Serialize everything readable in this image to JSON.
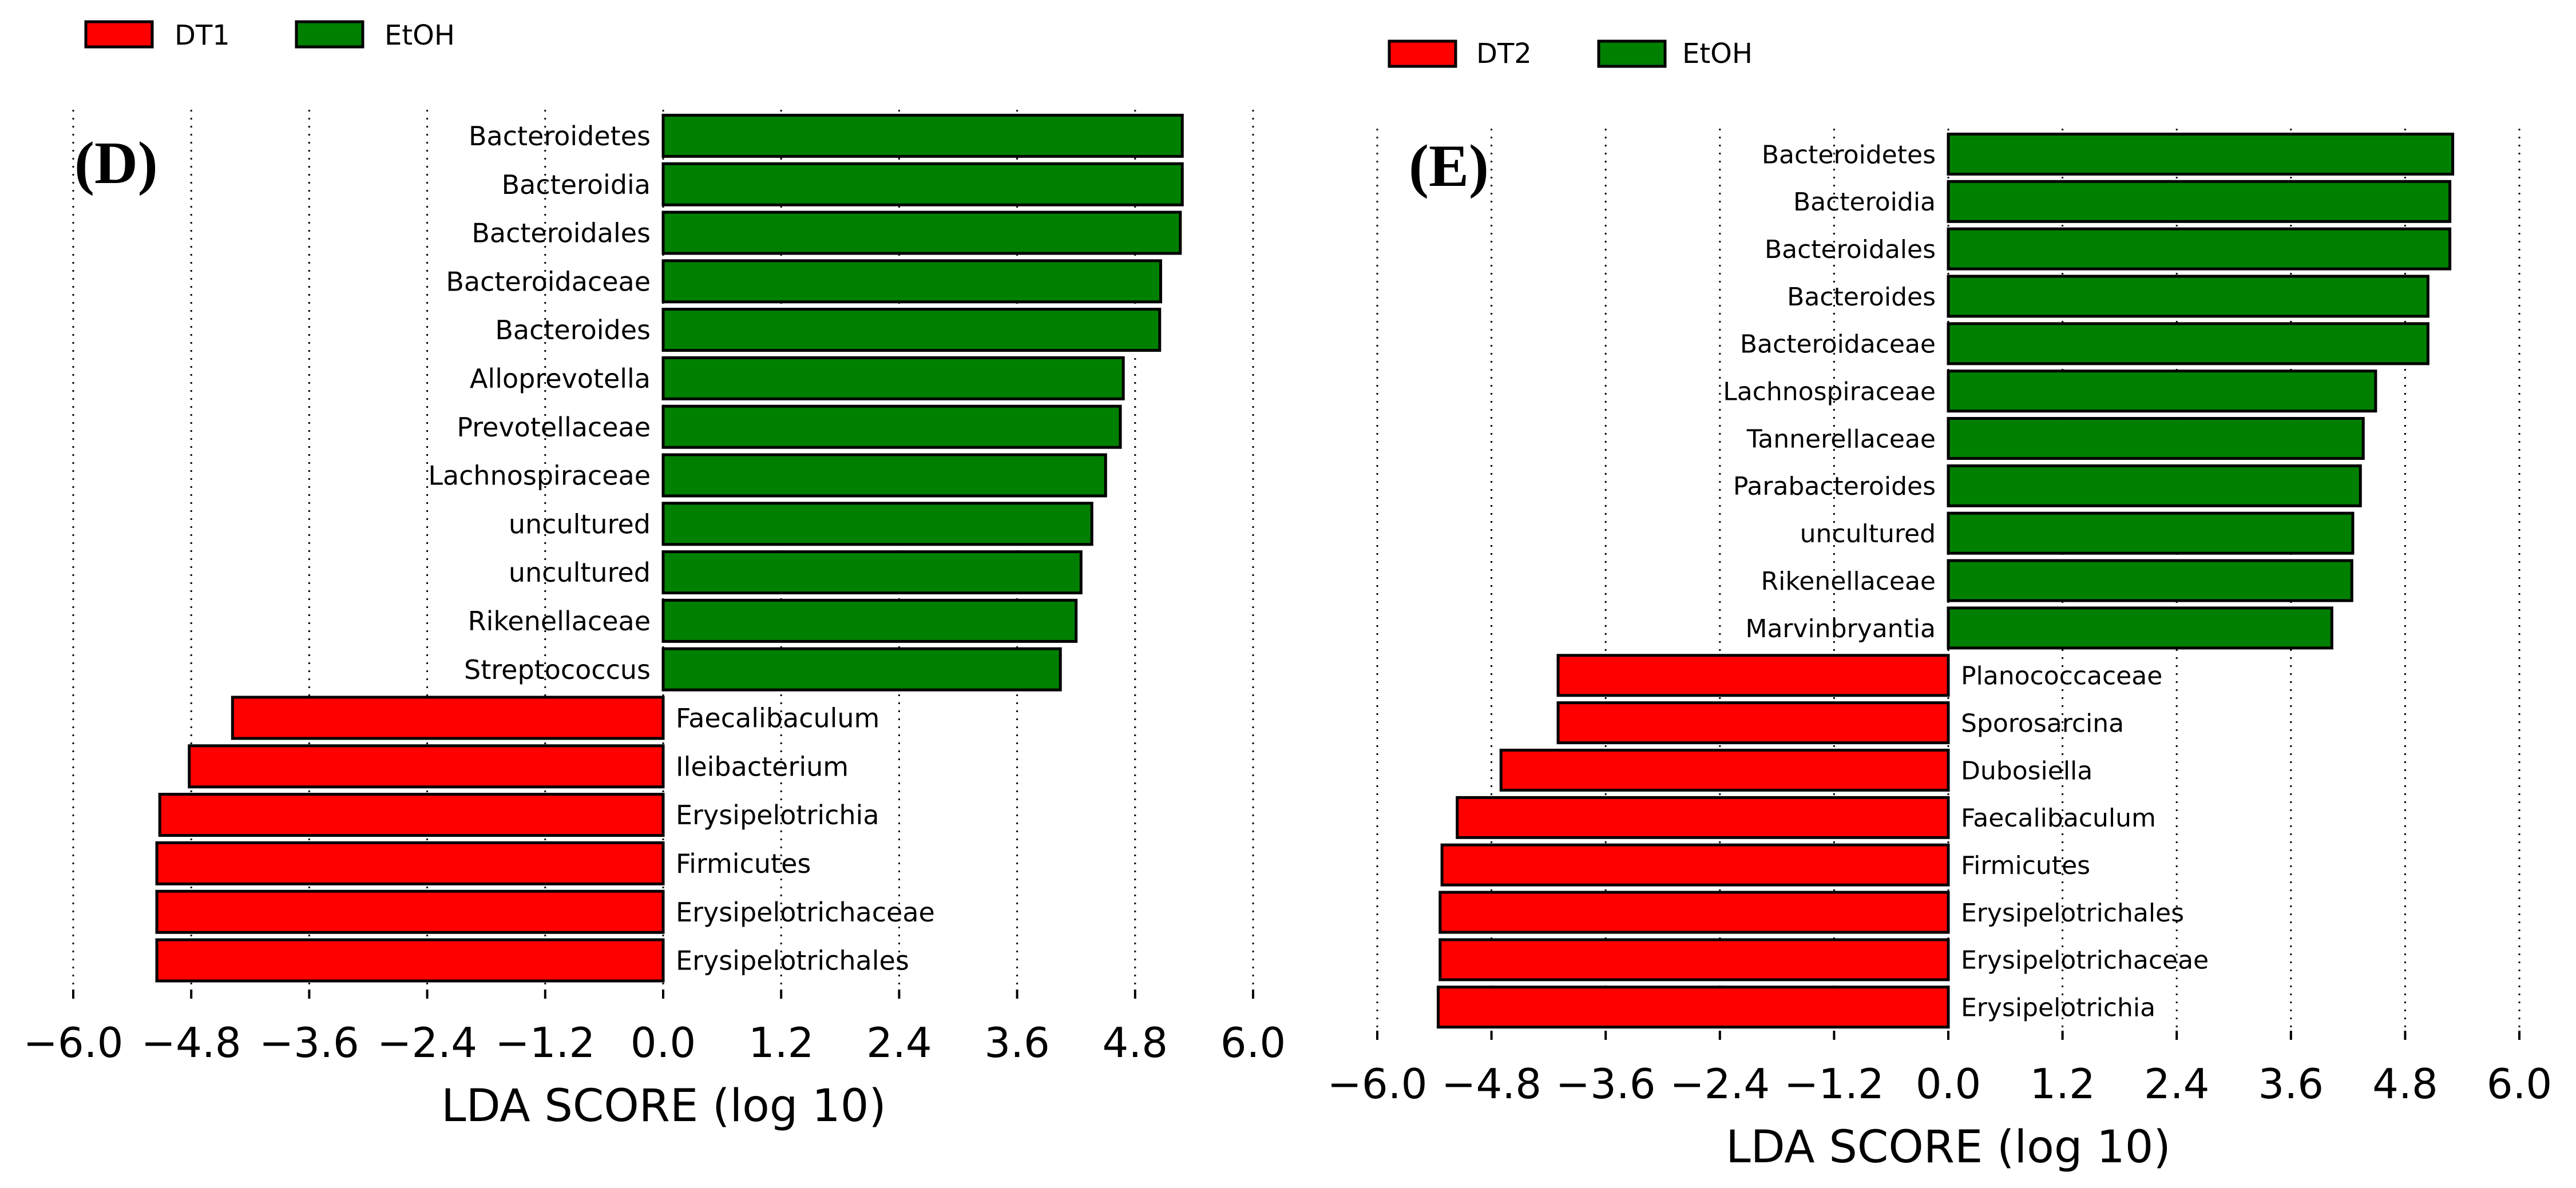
{
  "chart_data": [
    {
      "type": "bar",
      "orientation": "horizontal",
      "panel_label": "(D)",
      "xlabel": "LDA SCORE (log 10)",
      "xlim": [
        -6.0,
        6.0
      ],
      "xticks": [
        -6.0,
        -4.8,
        -3.6,
        -2.4,
        -1.2,
        0.0,
        1.2,
        2.4,
        3.6,
        4.8,
        6.0
      ],
      "xtick_labels": [
        "−6.0",
        "−4.8",
        "−3.6",
        "−2.4",
        "−1.2",
        "0.0",
        "1.2",
        "2.4",
        "3.6",
        "4.8",
        "6.0"
      ],
      "grid": "vertical dotted",
      "legend": [
        {
          "name": "DT1",
          "color": "#ff0000"
        },
        {
          "name": "EtOH",
          "color": "#008000"
        }
      ],
      "categories": [
        "Bacteroidetes",
        "Bacteroidia",
        "Bacteroidales",
        "Bacteroidaceae",
        "Bacteroides",
        "Alloprevotella",
        "Prevotellaceae",
        "Lachnospiraceae",
        "uncultured",
        "uncultured",
        "Rikenellaceae",
        "Streptococcus",
        "Faecalibaculum",
        "Ileibacterium",
        "Erysipelotrichia",
        "Firmicutes",
        "Erysipelotrichaceae",
        "Erysipelotrichales"
      ],
      "values": [
        5.28,
        5.28,
        5.26,
        5.06,
        5.05,
        4.68,
        4.65,
        4.5,
        4.36,
        4.25,
        4.2,
        4.04,
        -4.38,
        -4.82,
        -5.12,
        -5.15,
        -5.15,
        -5.15
      ],
      "groups": [
        "EtOH",
        "EtOH",
        "EtOH",
        "EtOH",
        "EtOH",
        "EtOH",
        "EtOH",
        "EtOH",
        "EtOH",
        "EtOH",
        "EtOH",
        "EtOH",
        "DT1",
        "DT1",
        "DT1",
        "DT1",
        "DT1",
        "DT1"
      ]
    },
    {
      "type": "bar",
      "orientation": "horizontal",
      "panel_label": "(E)",
      "xlabel": "LDA SCORE (log 10)",
      "xlim": [
        -6.0,
        6.0
      ],
      "xticks": [
        -6.0,
        -4.8,
        -3.6,
        -2.4,
        -1.2,
        0.0,
        1.2,
        2.4,
        3.6,
        4.8,
        6.0
      ],
      "xtick_labels": [
        "−6.0",
        "−4.8",
        "−3.6",
        "−2.4",
        "−1.2",
        "0.0",
        "1.2",
        "2.4",
        "3.6",
        "4.8",
        "6.0"
      ],
      "grid": "vertical dotted",
      "legend": [
        {
          "name": "DT2",
          "color": "#ff0000"
        },
        {
          "name": "EtOH",
          "color": "#008000"
        }
      ],
      "categories": [
        "Bacteroidetes",
        "Bacteroidia",
        "Bacteroidales",
        "Bacteroides",
        "Bacteroidaceae",
        "Lachnospiraceae",
        "Tannerellaceae",
        "Parabacteroides",
        "uncultured",
        "Rikenellaceae",
        "Marvinbryantia",
        "Planococcaceae",
        "Sporosarcina",
        "Dubosiella",
        "Faecalibaculum",
        "Firmicutes",
        "Erysipelotrichales",
        "Erysipelotrichaceae",
        "Erysipelotrichia"
      ],
      "values": [
        5.3,
        5.27,
        5.27,
        5.04,
        5.04,
        4.49,
        4.36,
        4.33,
        4.25,
        4.24,
        4.03,
        -4.1,
        -4.1,
        -4.7,
        -5.16,
        -5.32,
        -5.34,
        -5.34,
        -5.36
      ],
      "groups": [
        "EtOH",
        "EtOH",
        "EtOH",
        "EtOH",
        "EtOH",
        "EtOH",
        "EtOH",
        "EtOH",
        "EtOH",
        "EtOH",
        "EtOH",
        "DT2",
        "DT2",
        "DT2",
        "DT2",
        "DT2",
        "DT2",
        "DT2",
        "DT2"
      ]
    }
  ]
}
